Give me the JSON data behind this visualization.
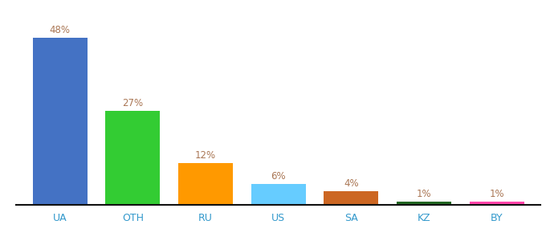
{
  "categories": [
    "UA",
    "OTH",
    "RU",
    "US",
    "SA",
    "KZ",
    "BY"
  ],
  "values": [
    48,
    27,
    12,
    6,
    4,
    1,
    1
  ],
  "bar_colors": [
    "#4472c4",
    "#33cc33",
    "#ff9900",
    "#66ccff",
    "#cc6622",
    "#226622",
    "#ff44aa"
  ],
  "label_color": "#aa7755",
  "xlabel_color": "#3399cc",
  "background_color": "#ffffff",
  "ylim": [
    0,
    54
  ],
  "bar_width": 0.75
}
